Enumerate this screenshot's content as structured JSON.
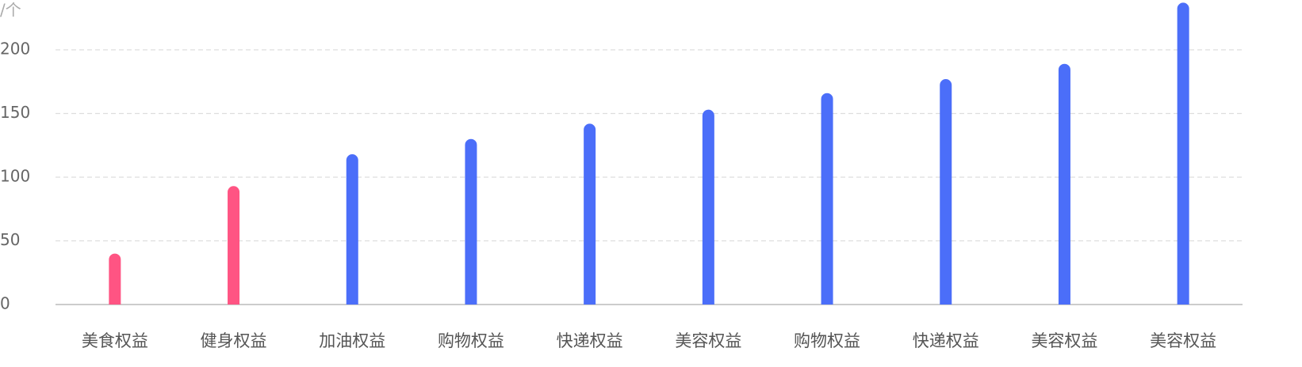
{
  "chart_data": {
    "type": "bar",
    "unit": "/个",
    "categories": [
      "美食权益",
      "健身权益",
      "加油权益",
      "购物权益",
      "快递权益",
      "美容权益",
      "购物权益",
      "快递权益",
      "美容权益",
      "美容权益"
    ],
    "values": [
      40,
      93,
      118,
      130,
      142,
      153,
      166,
      177,
      189,
      237
    ],
    "colors": [
      "#ff5483",
      "#ff5483",
      "#4b6ef9",
      "#4b6ef9",
      "#4b6ef9",
      "#4b6ef9",
      "#4b6ef9",
      "#4b6ef9",
      "#4b6ef9",
      "#4b6ef9"
    ],
    "ylim": [
      0,
      240
    ],
    "yticks": [
      0,
      50,
      100,
      150,
      200
    ],
    "grid": true
  }
}
